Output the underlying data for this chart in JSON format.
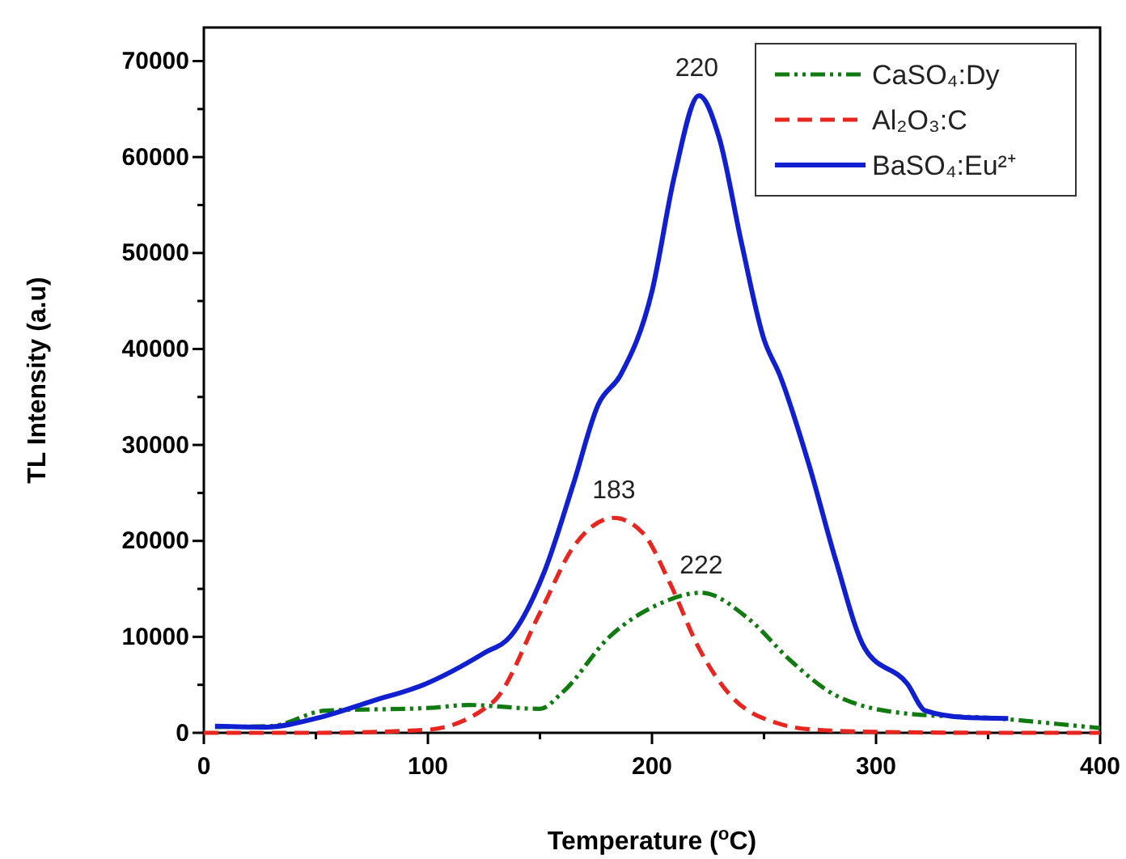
{
  "chart_data": {
    "type": "line",
    "xlabel": "Temperature ($^{o}$C)",
    "ylabel": "TL Intensity (a.u)",
    "xlim": [
      0,
      400
    ],
    "ylim": [
      0,
      73500
    ],
    "xticks": [
      0,
      {
        "value": 50,
        "label": null
      },
      100,
      {
        "value": 150,
        "label": null
      },
      200,
      {
        "value": 250,
        "label": null
      },
      300,
      {
        "value": 350,
        "label": null
      },
      400
    ],
    "yticks": [
      0,
      {
        "value": 5000,
        "label": null
      },
      10000,
      {
        "value": 15000,
        "label": null
      },
      20000,
      {
        "value": 25000,
        "label": null
      },
      30000,
      {
        "value": 35000,
        "label": null
      },
      40000,
      {
        "value": 45000,
        "label": null
      },
      50000,
      {
        "value": 55000,
        "label": null
      },
      60000,
      {
        "value": 65000,
        "label": null
      },
      70000
    ],
    "legend": "top right",
    "grid": false,
    "series": [
      {
        "name": "CaSO₄:Dy",
        "color": "#117a11",
        "line_style": "dotted",
        "x": [
          5,
          30,
          54,
          101,
          118,
          150,
          160,
          181,
          203,
          222,
          243,
          262,
          282,
          314,
          354,
          391,
          400
        ],
        "values": [
          600,
          700,
          2300,
          2600,
          2900,
          2500,
          4200,
          10000,
          13400,
          14600,
          11900,
          7500,
          3900,
          2000,
          1500,
          700,
          500
        ]
      },
      {
        "name": "Al₂O₃:C",
        "color": "#e8251f",
        "line_style": "dashed",
        "x": [
          0,
          50,
          99,
          129,
          150,
          165,
          183,
          196,
          208,
          221,
          235,
          256,
          274,
          300,
          350,
          400
        ],
        "values": [
          0,
          0,
          300,
          3200,
          12500,
          19400,
          22400,
          20800,
          15600,
          8800,
          3900,
          1000,
          300,
          100,
          0,
          0
        ]
      },
      {
        "name": "BaSO₄:Eu²⁺",
        "color": "#1020d0",
        "line_style": "solid",
        "x": [
          5,
          28,
          50,
          75,
          99,
          125,
          137,
          152,
          165,
          176,
          186,
          200,
          210,
          221,
          230,
          240,
          250,
          257,
          270,
          282,
          295,
          314,
          322,
          340,
          359
        ],
        "values": [
          700,
          600,
          1500,
          3300,
          5100,
          8300,
          10100,
          16800,
          26000,
          34200,
          37300,
          46000,
          58000,
          66400,
          62000,
          51000,
          41000,
          37300,
          28000,
          18000,
          8800,
          5100,
          2300,
          1600,
          1500
        ]
      }
    ],
    "annotations": [
      {
        "text": "220",
        "x": 220,
        "y": 66400
      },
      {
        "text": "183",
        "x": 183,
        "y": 22400
      },
      {
        "text": "222",
        "x": 222,
        "y": 14600
      }
    ]
  }
}
